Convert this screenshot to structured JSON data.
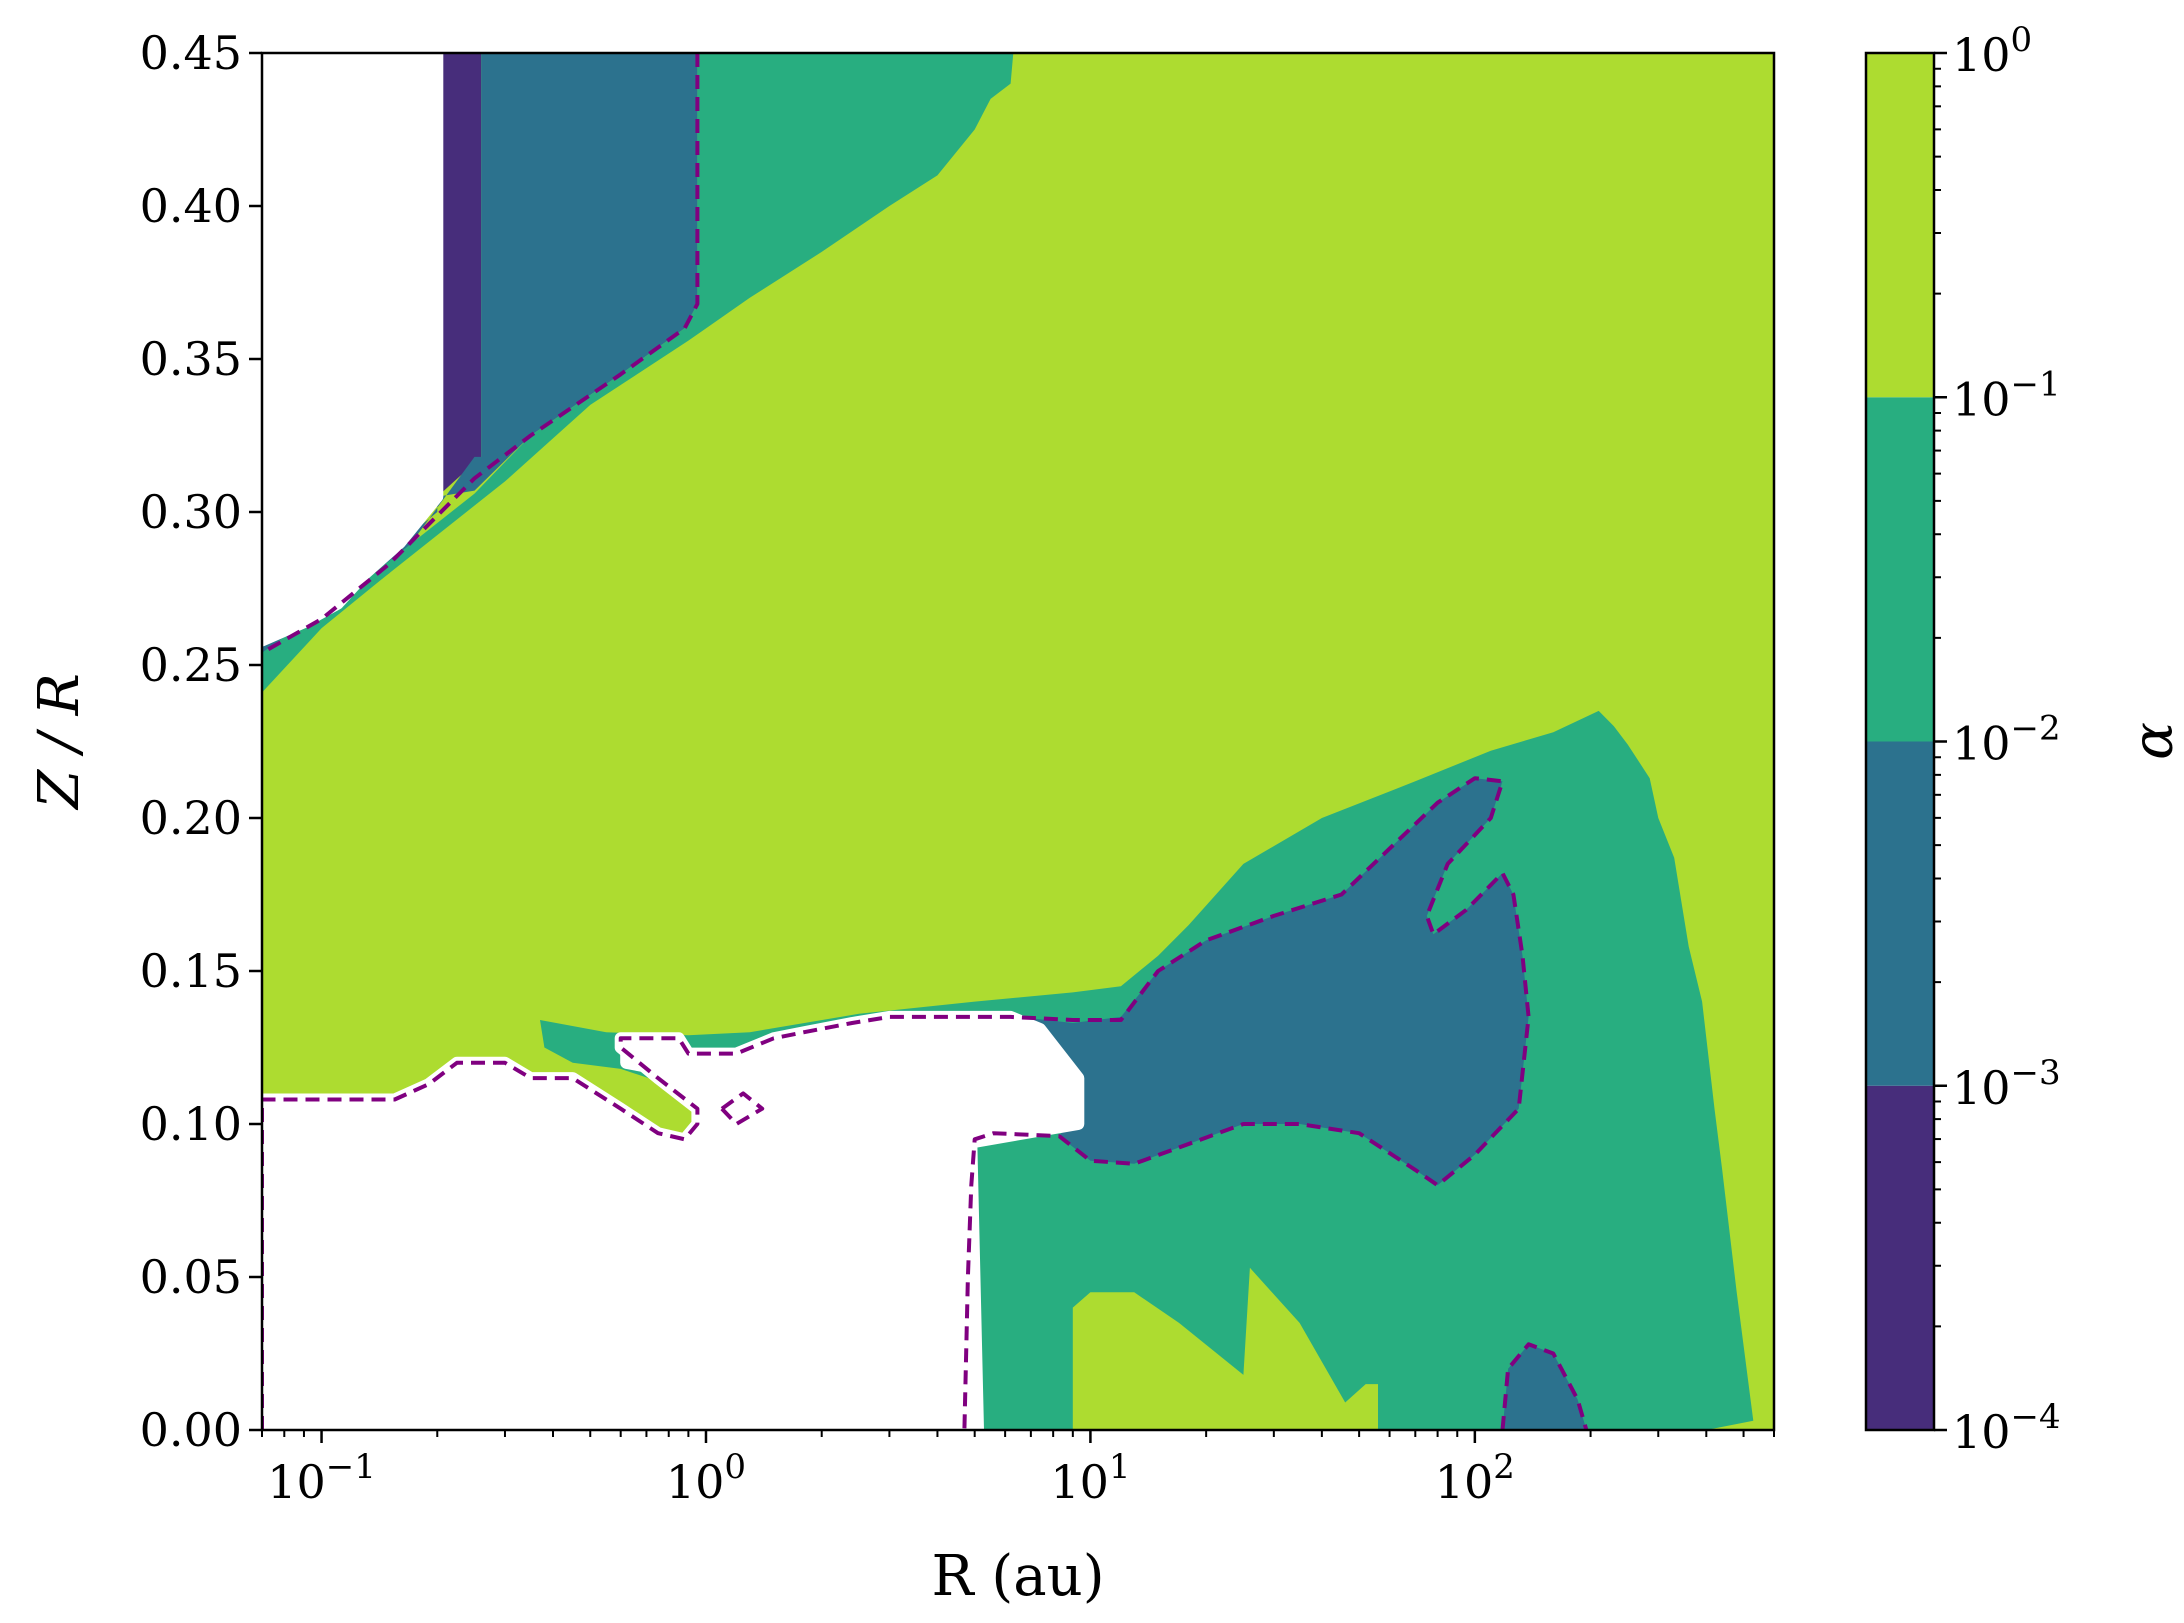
{
  "chart_data": {
    "type": "heatmap",
    "subtype": "filled-contour",
    "xlabel": "R (au)",
    "ylabel": "Z / R",
    "xscale": "log",
    "xlim": [
      0.07,
      600
    ],
    "ylim": [
      0,
      0.45
    ],
    "x_ticks": [
      {
        "value": 0.1,
        "base": "10",
        "exp": "−1"
      },
      {
        "value": 1,
        "base": "10",
        "exp": "0"
      },
      {
        "value": 10,
        "base": "10",
        "exp": "1"
      },
      {
        "value": 100,
        "base": "10",
        "exp": "2"
      }
    ],
    "y_ticks": [
      "0.00",
      "0.05",
      "0.10",
      "0.15",
      "0.20",
      "0.25",
      "0.30",
      "0.35",
      "0.40",
      "0.45"
    ],
    "grid": false,
    "colorbar": {
      "label": "α",
      "scale": "log",
      "range": [
        0.0001,
        1
      ],
      "ticks": [
        {
          "value": 0.0001,
          "base": "10",
          "exp": "−4"
        },
        {
          "value": 0.001,
          "base": "10",
          "exp": "−3"
        },
        {
          "value": 0.01,
          "base": "10",
          "exp": "−2"
        },
        {
          "value": 0.1,
          "base": "10",
          "exp": "−1"
        },
        {
          "value": 1,
          "base": "10",
          "exp": "0"
        }
      ],
      "levels": [
        {
          "range": [
            0.0001,
            0.001
          ],
          "color": "#472d7b"
        },
        {
          "range": [
            0.001,
            0.01
          ],
          "color": "#2c728e"
        },
        {
          "range": [
            0.01,
            0.1
          ],
          "color": "#28ae80"
        },
        {
          "range": [
            0.1,
            1
          ],
          "color": "#addc30"
        }
      ]
    },
    "regions": [
      {
        "name": "upper-inner-purple",
        "level": 0,
        "points": [
          [
            0.2,
            0.45
          ],
          [
            0.26,
            0.45
          ],
          [
            0.26,
            0.318
          ],
          [
            0.2,
            0.305
          ]
        ]
      },
      {
        "name": "upper-inner-blue",
        "level": 1,
        "points": [
          [
            0.26,
            0.45
          ],
          [
            0.95,
            0.45
          ],
          [
            0.95,
            0.368
          ],
          [
            0.88,
            0.36
          ],
          [
            0.6,
            0.345
          ],
          [
            0.35,
            0.325
          ],
          [
            0.25,
            0.307
          ],
          [
            0.2,
            0.305
          ],
          [
            0.2,
            0.3
          ],
          [
            0.16,
            0.29
          ],
          [
            0.13,
            0.28
          ],
          [
            0.11,
            0.275
          ],
          [
            0.09,
            0.265
          ],
          [
            0.07,
            0.26
          ],
          [
            0.07,
            0.252
          ],
          [
            0.15,
            0.28
          ],
          [
            0.25,
            0.318
          ],
          [
            0.26,
            0.318
          ]
        ]
      },
      {
        "name": "upper-green-band",
        "level": 2,
        "points": [
          [
            0.95,
            0.45
          ],
          [
            6.3,
            0.45
          ],
          [
            6.2,
            0.44
          ],
          [
            5.5,
            0.435
          ],
          [
            5,
            0.425
          ],
          [
            4,
            0.41
          ],
          [
            3,
            0.4
          ],
          [
            2,
            0.385
          ],
          [
            1.3,
            0.37
          ],
          [
            1,
            0.36
          ],
          [
            0.9,
            0.356
          ],
          [
            0.5,
            0.335
          ],
          [
            0.3,
            0.31
          ],
          [
            0.15,
            0.28
          ],
          [
            0.1,
            0.262
          ],
          [
            0.07,
            0.241
          ],
          [
            0.07,
            0.254
          ],
          [
            0.1,
            0.268
          ],
          [
            0.15,
            0.284
          ],
          [
            0.25,
            0.306
          ],
          [
            0.35,
            0.325
          ],
          [
            0.6,
            0.345
          ],
          [
            0.88,
            0.36
          ],
          [
            0.95,
            0.368
          ]
        ]
      },
      {
        "name": "left-void-upper",
        "level": "none",
        "points": [
          [
            0.07,
            0.45
          ],
          [
            0.2,
            0.45
          ],
          [
            0.2,
            0.305
          ],
          [
            0.16,
            0.29
          ],
          [
            0.13,
            0.28
          ],
          [
            0.11,
            0.27
          ],
          [
            0.09,
            0.264
          ],
          [
            0.07,
            0.258
          ]
        ]
      },
      {
        "name": "mid-green-band",
        "level": 2,
        "points": [
          [
            0.37,
            0.134
          ],
          [
            0.55,
            0.13
          ],
          [
            0.9,
            0.129
          ],
          [
            1.3,
            0.13
          ],
          [
            2.5,
            0.136
          ],
          [
            5,
            0.14
          ],
          [
            9,
            0.143
          ],
          [
            12,
            0.145
          ],
          [
            15,
            0.155
          ],
          [
            18,
            0.165
          ],
          [
            25,
            0.185
          ],
          [
            40,
            0.2
          ],
          [
            70,
            0.212
          ],
          [
            110,
            0.222
          ],
          [
            160,
            0.228
          ],
          [
            210,
            0.235
          ],
          [
            230,
            0.23
          ],
          [
            250,
            0.224
          ],
          [
            285,
            0.213
          ],
          [
            300,
            0.2
          ],
          [
            330,
            0.187
          ],
          [
            360,
            0.158
          ],
          [
            390,
            0.14
          ],
          [
            420,
            0.105
          ],
          [
            440,
            0.085
          ],
          [
            480,
            0.045
          ],
          [
            530,
            0.003
          ],
          [
            400,
            0.0
          ],
          [
            5,
            0.0
          ],
          [
            5,
            0.095
          ],
          [
            4.7,
            0.092
          ],
          [
            2.8,
            0.093
          ],
          [
            1.5,
            0.104
          ],
          [
            1.2,
            0.113
          ],
          [
            0.9,
            0.105
          ],
          [
            0.75,
            0.114
          ],
          [
            0.6,
            0.118
          ],
          [
            0.45,
            0.12
          ],
          [
            0.38,
            0.125
          ]
        ]
      },
      {
        "name": "mid-blue-region",
        "level": 1,
        "points": [
          [
            6.5,
            0.135
          ],
          [
            9,
            0.133
          ],
          [
            12,
            0.135
          ],
          [
            15,
            0.15
          ],
          [
            20,
            0.16
          ],
          [
            30,
            0.168
          ],
          [
            45,
            0.175
          ],
          [
            60,
            0.19
          ],
          [
            80,
            0.205
          ],
          [
            100,
            0.213
          ],
          [
            118,
            0.212
          ],
          [
            110,
            0.2
          ],
          [
            85,
            0.185
          ],
          [
            75,
            0.168
          ],
          [
            78,
            0.162
          ],
          [
            95,
            0.17
          ],
          [
            118,
            0.182
          ],
          [
            126,
            0.175
          ],
          [
            133,
            0.155
          ],
          [
            138,
            0.135
          ],
          [
            130,
            0.105
          ],
          [
            100,
            0.09
          ],
          [
            80,
            0.08
          ],
          [
            70,
            0.085
          ],
          [
            50,
            0.097
          ],
          [
            35,
            0.1
          ],
          [
            25,
            0.1
          ],
          [
            13,
            0.087
          ],
          [
            10,
            0.088
          ],
          [
            8.3,
            0.096
          ],
          [
            9.3,
            0.105
          ],
          [
            9.3,
            0.115
          ]
        ]
      },
      {
        "name": "bottom-blue-blob",
        "level": 1,
        "points": [
          [
            118,
            0.0
          ],
          [
            122,
            0.02
          ],
          [
            138,
            0.028
          ],
          [
            160,
            0.025
          ],
          [
            185,
            0.01
          ],
          [
            195,
            0.0
          ]
        ]
      },
      {
        "name": "bottom-yellow-patch",
        "level": 3,
        "points": [
          [
            9,
            0.0
          ],
          [
            9,
            0.04
          ],
          [
            10,
            0.045
          ],
          [
            13,
            0.045
          ],
          [
            17,
            0.035
          ],
          [
            25,
            0.018
          ],
          [
            26,
            0.053
          ],
          [
            35,
            0.035
          ],
          [
            46,
            0.009
          ],
          [
            52,
            0.015
          ],
          [
            56,
            0.015
          ],
          [
            56,
            0.0
          ]
        ]
      },
      {
        "name": "lower-left-void",
        "level": "none",
        "points": [
          [
            0.07,
            0.0
          ],
          [
            0.07,
            0.108
          ],
          [
            0.155,
            0.108
          ],
          [
            0.19,
            0.113
          ],
          [
            0.225,
            0.12
          ],
          [
            0.3,
            0.12
          ],
          [
            0.35,
            0.115
          ],
          [
            0.45,
            0.115
          ],
          [
            0.6,
            0.105
          ],
          [
            0.75,
            0.097
          ],
          [
            0.88,
            0.095
          ],
          [
            0.95,
            0.1
          ],
          [
            0.95,
            0.105
          ],
          [
            0.75,
            0.115
          ],
          [
            0.6,
            0.125
          ],
          [
            0.6,
            0.128
          ],
          [
            0.85,
            0.128
          ],
          [
            0.9,
            0.123
          ],
          [
            1.2,
            0.123
          ],
          [
            1.5,
            0.128
          ],
          [
            1.8,
            0.13
          ],
          [
            2.4,
            0.133
          ],
          [
            3,
            0.135
          ],
          [
            6.2,
            0.135
          ],
          [
            7.4,
            0.131
          ],
          [
            9.3,
            0.115
          ],
          [
            9.3,
            0.1
          ],
          [
            4.9,
            0.094
          ],
          [
            5.1,
            0.0
          ]
        ]
      },
      {
        "name": "void-patch-small",
        "level": "none",
        "points": [
          [
            0.62,
            0.124
          ],
          [
            0.85,
            0.122
          ],
          [
            0.75,
            0.118
          ],
          [
            0.62,
            0.12
          ]
        ]
      }
    ],
    "contours": [
      {
        "name": "alpha-1e-3-upper",
        "style": "dashed",
        "color": "#800080",
        "points": [
          [
            0.95,
            0.45
          ],
          [
            0.95,
            0.368
          ],
          [
            0.88,
            0.36
          ],
          [
            0.6,
            0.345
          ],
          [
            0.35,
            0.325
          ],
          [
            0.25,
            0.311
          ],
          [
            0.15,
            0.283
          ],
          [
            0.1,
            0.265
          ],
          [
            0.07,
            0.254
          ]
        ]
      },
      {
        "name": "alpha-1e-3-void-edge",
        "style": "dashed",
        "color": "#800080",
        "points": [
          [
            0.07,
            0.0
          ],
          [
            0.07,
            0.108
          ],
          [
            0.155,
            0.108
          ],
          [
            0.19,
            0.113
          ],
          [
            0.225,
            0.12
          ],
          [
            0.3,
            0.12
          ],
          [
            0.35,
            0.115
          ],
          [
            0.45,
            0.115
          ],
          [
            0.6,
            0.105
          ],
          [
            0.75,
            0.097
          ],
          [
            0.88,
            0.095
          ],
          [
            0.95,
            0.1
          ],
          [
            0.95,
            0.105
          ],
          [
            0.75,
            0.115
          ],
          [
            0.6,
            0.125
          ],
          [
            0.6,
            0.128
          ],
          [
            0.85,
            0.128
          ],
          [
            0.9,
            0.123
          ],
          [
            1.2,
            0.123
          ],
          [
            1.5,
            0.128
          ],
          [
            1.8,
            0.13
          ],
          [
            2.4,
            0.133
          ],
          [
            3,
            0.135
          ],
          [
            6.2,
            0.135
          ],
          [
            9,
            0.134
          ],
          [
            12,
            0.134
          ],
          [
            15,
            0.15
          ],
          [
            20,
            0.16
          ],
          [
            30,
            0.168
          ],
          [
            45,
            0.175
          ],
          [
            60,
            0.19
          ],
          [
            80,
            0.205
          ],
          [
            100,
            0.213
          ],
          [
            118,
            0.212
          ],
          [
            110,
            0.2
          ],
          [
            85,
            0.185
          ],
          [
            75,
            0.168
          ],
          [
            78,
            0.162
          ],
          [
            95,
            0.17
          ],
          [
            118,
            0.182
          ],
          [
            126,
            0.175
          ],
          [
            133,
            0.155
          ],
          [
            138,
            0.135
          ],
          [
            130,
            0.105
          ],
          [
            100,
            0.09
          ],
          [
            80,
            0.08
          ],
          [
            70,
            0.085
          ],
          [
            50,
            0.097
          ],
          [
            35,
            0.1
          ],
          [
            25,
            0.1
          ],
          [
            13,
            0.087
          ],
          [
            10,
            0.088
          ],
          [
            8.3,
            0.096
          ],
          [
            5.6,
            0.097
          ],
          [
            5,
            0.095
          ],
          [
            4.9,
            0.08
          ],
          [
            4.8,
            0.05
          ],
          [
            4.7,
            0.0
          ]
        ]
      },
      {
        "name": "alpha-1e-3-bottom",
        "style": "dashed",
        "color": "#800080",
        "points": [
          [
            118,
            0.0
          ],
          [
            122,
            0.02
          ],
          [
            138,
            0.028
          ],
          [
            160,
            0.025
          ],
          [
            185,
            0.01
          ],
          [
            195,
            0.0
          ]
        ]
      },
      {
        "name": "alpha-1e-3-small-loop",
        "style": "dashed",
        "color": "#800080",
        "points": [
          [
            1.1,
            0.105
          ],
          [
            1.25,
            0.11
          ],
          [
            1.4,
            0.105
          ],
          [
            1.2,
            0.1
          ],
          [
            1.1,
            0.105
          ]
        ]
      }
    ]
  }
}
